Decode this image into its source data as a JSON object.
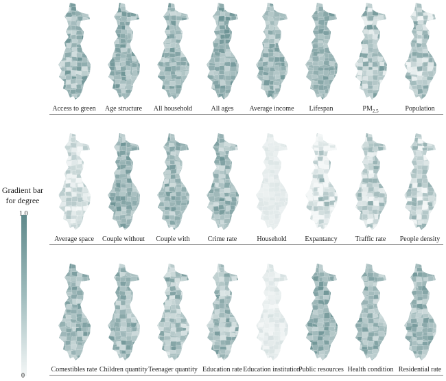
{
  "legend": {
    "title_line1": "Gradient bar",
    "title_line2": "for degree",
    "max_label": "1.0",
    "min_label": "0",
    "color_high": "#5f898b",
    "color_low": "#f4f7f7"
  },
  "rows": [
    {
      "maps": [
        {
          "label": "Access to green",
          "shade": 0.55,
          "variation": 0.35
        },
        {
          "label": "Age structure",
          "shade": 0.6,
          "variation": 0.3
        },
        {
          "label": "All household",
          "shade": 0.55,
          "variation": 0.3
        },
        {
          "label": "All ages",
          "shade": 0.6,
          "variation": 0.3
        },
        {
          "label": "Average income",
          "shade": 0.55,
          "variation": 0.3
        },
        {
          "label": "Lifespan",
          "shade": 0.6,
          "variation": 0.25
        },
        {
          "label": "PM",
          "sub": "2.5",
          "shade": 0.45,
          "variation": 0.4
        },
        {
          "label": "Population",
          "shade": 0.4,
          "variation": 0.4
        }
      ]
    },
    {
      "maps": [
        {
          "label": "Average space",
          "shade": 0.2,
          "variation": 0.25
        },
        {
          "label": "Couple without",
          "shade": 0.6,
          "variation": 0.3
        },
        {
          "label": "Couple with",
          "shade": 0.55,
          "variation": 0.3
        },
        {
          "label": "Crime rate",
          "shade": 0.55,
          "variation": 0.35
        },
        {
          "label": "Household",
          "shade": 0.1,
          "variation": 0.05
        },
        {
          "label": "Expantancy",
          "shade": 0.15,
          "variation": 0.5
        },
        {
          "label": "Traffic rate",
          "shade": 0.35,
          "variation": 0.35
        },
        {
          "label": "People density",
          "shade": 0.3,
          "variation": 0.35
        }
      ]
    },
    {
      "maps": [
        {
          "label": "Comestibles rate",
          "shade": 0.55,
          "variation": 0.3
        },
        {
          "label": "Children quantity",
          "shade": 0.55,
          "variation": 0.3
        },
        {
          "label": "Teenager quantity",
          "shade": 0.5,
          "variation": 0.35
        },
        {
          "label": "Education rate",
          "shade": 0.5,
          "variation": 0.35
        },
        {
          "label": "Education institution",
          "shade": 0.1,
          "variation": 0.1
        },
        {
          "label": "Public resources",
          "shade": 0.6,
          "variation": 0.3
        },
        {
          "label": "Health condition",
          "shade": 0.55,
          "variation": 0.3
        },
        {
          "label": "Residential rate",
          "shade": 0.55,
          "variation": 0.3
        }
      ]
    }
  ]
}
